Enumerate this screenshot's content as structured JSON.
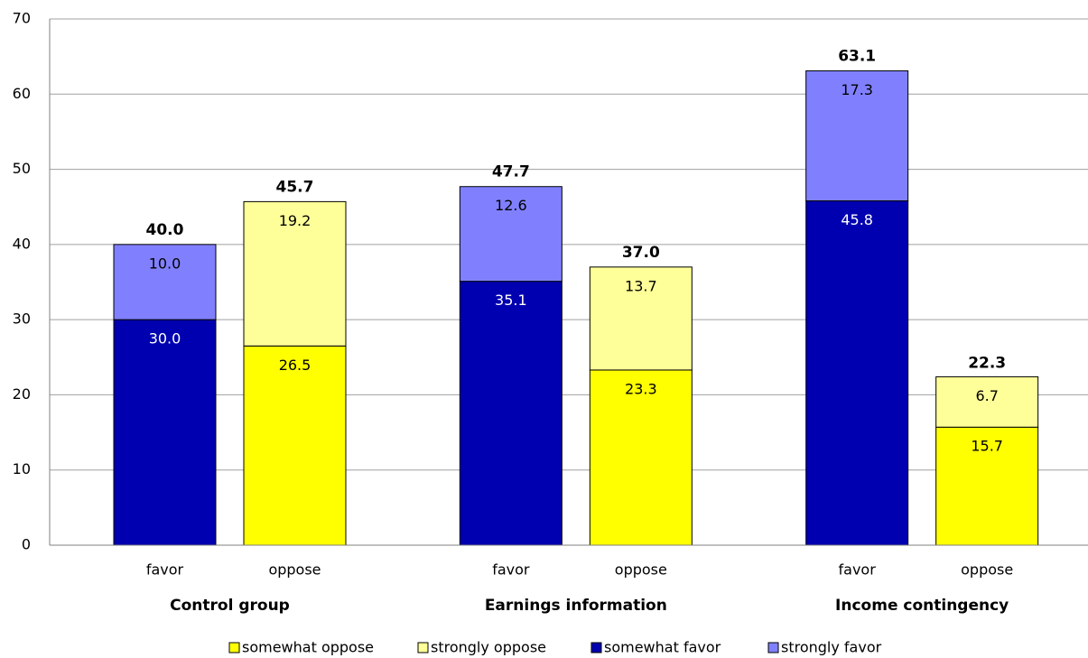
{
  "chart_data": {
    "type": "stacked_bar",
    "categories": [
      "favor",
      "oppose",
      "favor",
      "oppose",
      "favor",
      "oppose"
    ],
    "groups": [
      "Control group",
      "Earnings information",
      "Income contingency"
    ],
    "series": [
      {
        "name": "somewhat oppose",
        "color": "#ffff00",
        "values": [
          null,
          26.5,
          null,
          23.3,
          null,
          15.7
        ],
        "value_labels": [
          null,
          "26.5",
          null,
          "23.3",
          null,
          "15.7"
        ]
      },
      {
        "name": "strongly oppose",
        "color": "#ffff99",
        "values": [
          null,
          19.2,
          null,
          13.7,
          null,
          6.7
        ],
        "value_labels": [
          null,
          "19.2",
          null,
          "13.7",
          null,
          "6.7"
        ]
      },
      {
        "name": "somewhat favor",
        "color": "#0000b0",
        "values": [
          30,
          null,
          35.1,
          null,
          45.8,
          null
        ],
        "value_labels": [
          "30.0",
          null,
          "35.1",
          null,
          "45.8",
          null
        ]
      },
      {
        "name": "strongly favor",
        "color": "#8080ff",
        "values": [
          10,
          null,
          12.6,
          null,
          17.3,
          null
        ],
        "value_labels": [
          "10.0",
          null,
          "12.6",
          null,
          "17.3",
          null
        ]
      }
    ],
    "totals": [
      40,
      45.7,
      47.7,
      37,
      63.1,
      22.3
    ],
    "total_labels": [
      "40.0",
      "45.7",
      "47.7",
      "37.0",
      "63.1",
      "22.3"
    ],
    "ylim": [
      0,
      70
    ],
    "yticks": [
      0,
      10,
      20,
      30,
      40,
      50,
      60,
      70
    ],
    "grid": true,
    "legend": "bottom"
  }
}
